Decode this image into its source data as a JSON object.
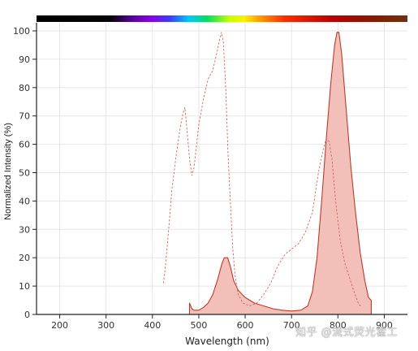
{
  "chart_data": {
    "type": "area",
    "xlabel": "Wavelength (nm)",
    "ylabel": "Normalized Intensity (%)",
    "xlim": [
      150,
      950
    ],
    "ylim": [
      0,
      100
    ],
    "x_ticks": [
      200,
      300,
      400,
      500,
      600,
      700,
      800,
      900
    ],
    "y_ticks": [
      0,
      10,
      20,
      30,
      40,
      50,
      60,
      70,
      80,
      90,
      100
    ],
    "grid": true,
    "legend": "none",
    "spectrum_bar": true,
    "colors": {
      "filled_series": "#c0392b",
      "fill": "#f2c0b8",
      "dashed_series": "#d06a5a"
    },
    "series": [
      {
        "style": "filled",
        "points": [
          [
            480,
            4
          ],
          [
            485,
            2
          ],
          [
            490,
            1.5
          ],
          [
            500,
            1.5
          ],
          [
            510,
            2.5
          ],
          [
            520,
            4
          ],
          [
            530,
            7
          ],
          [
            540,
            12
          ],
          [
            550,
            18
          ],
          [
            555,
            20
          ],
          [
            562,
            20
          ],
          [
            568,
            17
          ],
          [
            575,
            12
          ],
          [
            585,
            8.5
          ],
          [
            600,
            6
          ],
          [
            620,
            4
          ],
          [
            640,
            3
          ],
          [
            660,
            2
          ],
          [
            680,
            1.5
          ],
          [
            700,
            1.2
          ],
          [
            720,
            1.5
          ],
          [
            735,
            3
          ],
          [
            745,
            8
          ],
          [
            755,
            20
          ],
          [
            765,
            40
          ],
          [
            775,
            62
          ],
          [
            785,
            82
          ],
          [
            793,
            95
          ],
          [
            798,
            99.5
          ],
          [
            802,
            99.5
          ],
          [
            808,
            92
          ],
          [
            818,
            72
          ],
          [
            828,
            52
          ],
          [
            838,
            36
          ],
          [
            848,
            22
          ],
          [
            858,
            12
          ],
          [
            866,
            6
          ],
          [
            872,
            5
          ],
          [
            872,
            0
          ]
        ]
      },
      {
        "style": "dashed",
        "points": [
          [
            424,
            11
          ],
          [
            428,
            17
          ],
          [
            435,
            30
          ],
          [
            442,
            44
          ],
          [
            452,
            57
          ],
          [
            460,
            66
          ],
          [
            466,
            71
          ],
          [
            470,
            73
          ],
          [
            474,
            66
          ],
          [
            480,
            55
          ],
          [
            485,
            49
          ],
          [
            490,
            52
          ],
          [
            500,
            67
          ],
          [
            510,
            76
          ],
          [
            520,
            83
          ],
          [
            530,
            86
          ],
          [
            540,
            93
          ],
          [
            545,
            97
          ],
          [
            549,
            99.5
          ],
          [
            553,
            96
          ],
          [
            558,
            80
          ],
          [
            563,
            57
          ],
          [
            568,
            40
          ],
          [
            573,
            24
          ],
          [
            578,
            14
          ],
          [
            585,
            7
          ],
          [
            595,
            4
          ],
          [
            610,
            3
          ],
          [
            625,
            4
          ],
          [
            640,
            7
          ],
          [
            655,
            11
          ],
          [
            670,
            17
          ],
          [
            685,
            21
          ],
          [
            700,
            23
          ],
          [
            715,
            25
          ],
          [
            730,
            29
          ],
          [
            745,
            36
          ],
          [
            758,
            50
          ],
          [
            768,
            58
          ],
          [
            775,
            62
          ],
          [
            781,
            61
          ],
          [
            787,
            55
          ],
          [
            795,
            40
          ],
          [
            805,
            26
          ],
          [
            815,
            18
          ],
          [
            825,
            13
          ],
          [
            835,
            8
          ],
          [
            845,
            3.5
          ],
          [
            850,
            3
          ]
        ]
      }
    ]
  },
  "watermark": "知乎 @流式荧光霍工"
}
